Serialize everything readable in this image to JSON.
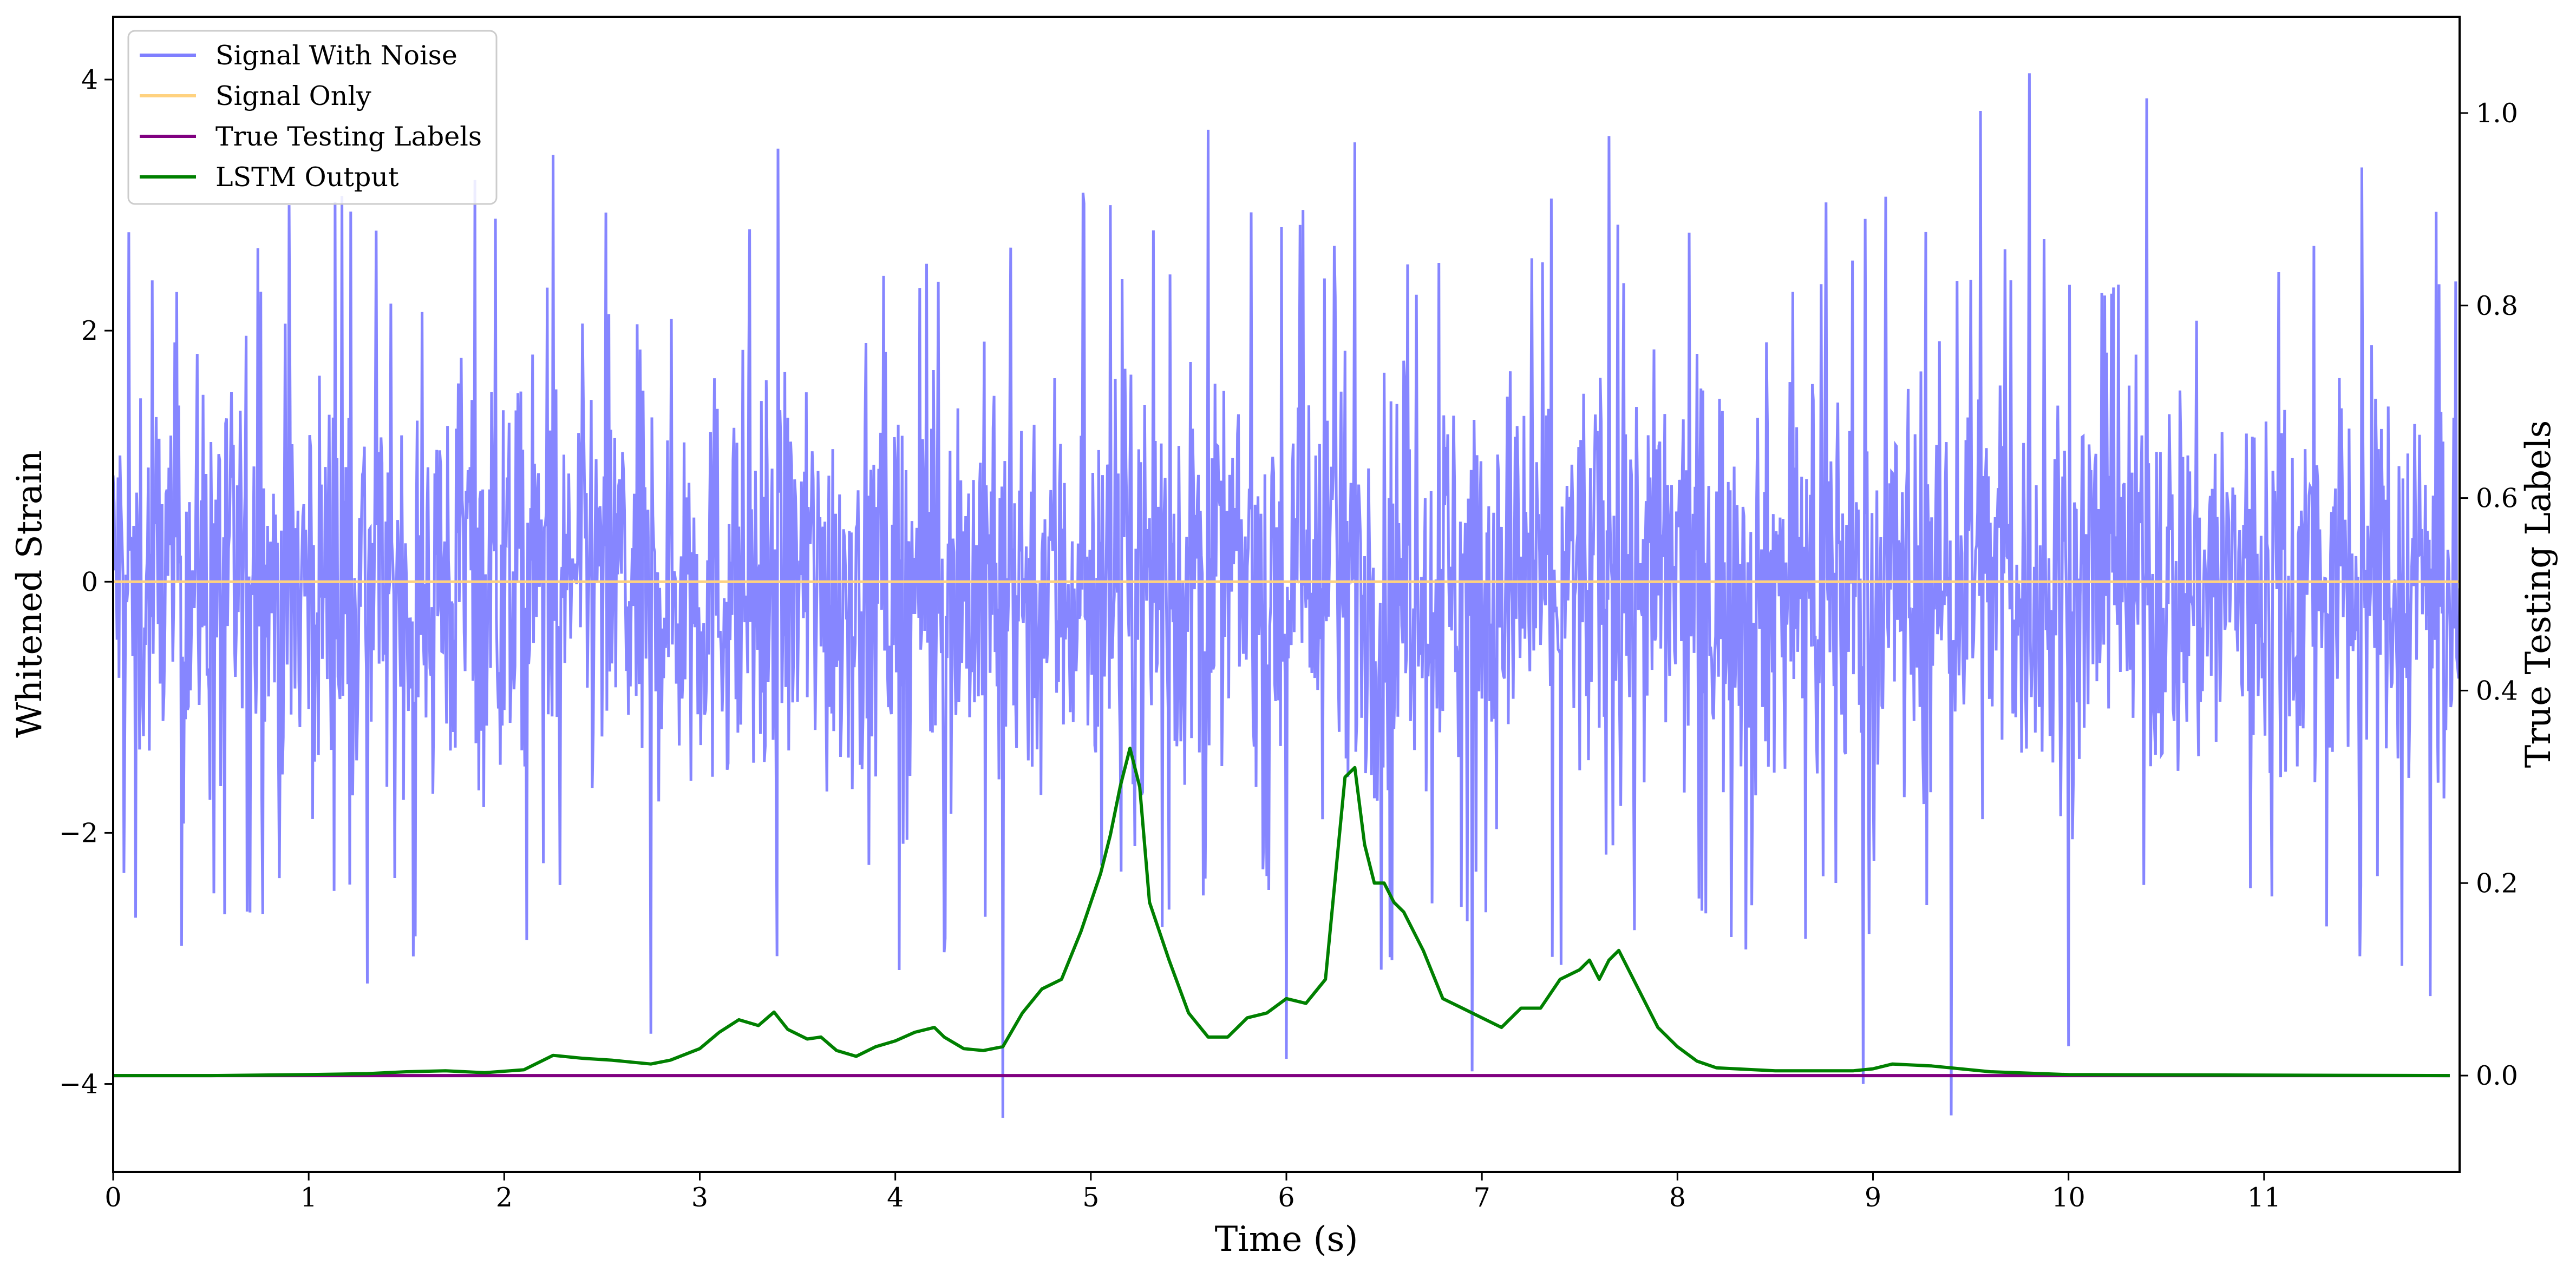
{
  "chart_data": {
    "type": "line",
    "xlabel": "Time (s)",
    "ylabel": "Whitened Strain",
    "y2label": "True Testing Labels",
    "xlim": [
      0,
      12
    ],
    "ylim": [
      -4.7,
      4.5
    ],
    "y2lim": [
      -0.1,
      1.1
    ],
    "x_ticks": [
      0,
      1,
      2,
      3,
      4,
      5,
      6,
      7,
      8,
      9,
      10,
      11
    ],
    "y_ticks": [
      -4,
      -2,
      0,
      2,
      4
    ],
    "y2_ticks": [
      0.0,
      0.2,
      0.4,
      0.6,
      0.8,
      1.0
    ],
    "x_tick_labels": [
      "0",
      "1",
      "2",
      "3",
      "4",
      "5",
      "6",
      "7",
      "8",
      "9",
      "10",
      "11"
    ],
    "y_tick_labels": [
      "−4",
      "−2",
      "0",
      "2",
      "4"
    ],
    "y2_tick_labels": [
      "0.0",
      "0.2",
      "0.4",
      "0.6",
      "0.8",
      "1.0"
    ],
    "grid": false,
    "legend_position": "top-left",
    "legend": [
      "Signal With Noise",
      "Signal Only",
      "True Testing Labels",
      "LSTM Output"
    ],
    "series": [
      {
        "name": "Signal With Noise",
        "axis": "left",
        "color": "#7f7fff",
        "description": "dense noise band roughly between -2.5 and 2.5 with spikes up to 4.05 (near t=9.8) and down to -4.27 (near t=4.55)",
        "spikes": [
          [
            0.2,
            2.4
          ],
          [
            0.35,
            -2.9
          ],
          [
            0.9,
            3.0
          ],
          [
            1.3,
            -3.2
          ],
          [
            1.85,
            3.2
          ],
          [
            2.25,
            3.4
          ],
          [
            2.75,
            -3.6
          ],
          [
            3.4,
            3.45
          ],
          [
            4.55,
            -4.27
          ],
          [
            5.6,
            3.6
          ],
          [
            6.0,
            -3.8
          ],
          [
            6.35,
            3.5
          ],
          [
            6.95,
            -3.9
          ],
          [
            7.65,
            3.55
          ],
          [
            8.95,
            -4.0
          ],
          [
            9.4,
            -4.25
          ],
          [
            9.55,
            3.75
          ],
          [
            9.8,
            4.05
          ],
          [
            10.4,
            3.85
          ],
          [
            10.0,
            -3.7
          ],
          [
            11.5,
            3.3
          ],
          [
            11.85,
            -3.3
          ]
        ]
      },
      {
        "name": "Signal Only",
        "axis": "left",
        "color": "#ffd27f",
        "x": [
          0,
          12
        ],
        "y": [
          0,
          0
        ]
      },
      {
        "name": "True Testing Labels",
        "axis": "right",
        "color": "#800080",
        "x": [
          0,
          11.95
        ],
        "y": [
          0,
          0
        ]
      },
      {
        "name": "LSTM Output",
        "axis": "right",
        "color": "#008000",
        "x": [
          0,
          0.5,
          1.0,
          1.3,
          1.5,
          1.7,
          1.9,
          2.1,
          2.25,
          2.4,
          2.55,
          2.65,
          2.75,
          2.85,
          3.0,
          3.1,
          3.2,
          3.3,
          3.38,
          3.45,
          3.55,
          3.62,
          3.7,
          3.8,
          3.9,
          4.0,
          4.1,
          4.2,
          4.25,
          4.35,
          4.45,
          4.55,
          4.65,
          4.75,
          4.85,
          4.95,
          5.05,
          5.1,
          5.15,
          5.2,
          5.25,
          5.3,
          5.4,
          5.5,
          5.6,
          5.7,
          5.8,
          5.9,
          6.0,
          6.1,
          6.2,
          6.3,
          6.35,
          6.4,
          6.45,
          6.5,
          6.55,
          6.6,
          6.7,
          6.8,
          6.9,
          7.0,
          7.1,
          7.2,
          7.3,
          7.4,
          7.5,
          7.55,
          7.6,
          7.65,
          7.7,
          7.8,
          7.9,
          8.0,
          8.1,
          8.2,
          8.5,
          8.9,
          9.0,
          9.1,
          9.3,
          9.6,
          10.0,
          11.95
        ],
        "y": [
          0,
          0,
          0.001,
          0.002,
          0.004,
          0.005,
          0.003,
          0.006,
          0.021,
          0.018,
          0.016,
          0.014,
          0.012,
          0.016,
          0.028,
          0.045,
          0.058,
          0.052,
          0.066,
          0.048,
          0.038,
          0.04,
          0.026,
          0.02,
          0.03,
          0.036,
          0.045,
          0.05,
          0.04,
          0.028,
          0.026,
          0.03,
          0.065,
          0.09,
          0.1,
          0.15,
          0.21,
          0.25,
          0.3,
          0.34,
          0.3,
          0.18,
          0.12,
          0.065,
          0.04,
          0.04,
          0.06,
          0.065,
          0.08,
          0.075,
          0.1,
          0.31,
          0.32,
          0.24,
          0.2,
          0.2,
          0.18,
          0.17,
          0.13,
          0.08,
          0.07,
          0.06,
          0.05,
          0.07,
          0.07,
          0.1,
          0.11,
          0.12,
          0.1,
          0.12,
          0.13,
          0.09,
          0.05,
          0.03,
          0.015,
          0.008,
          0.005,
          0.005,
          0.007,
          0.012,
          0.01,
          0.004,
          0.001,
          0
        ]
      }
    ]
  }
}
